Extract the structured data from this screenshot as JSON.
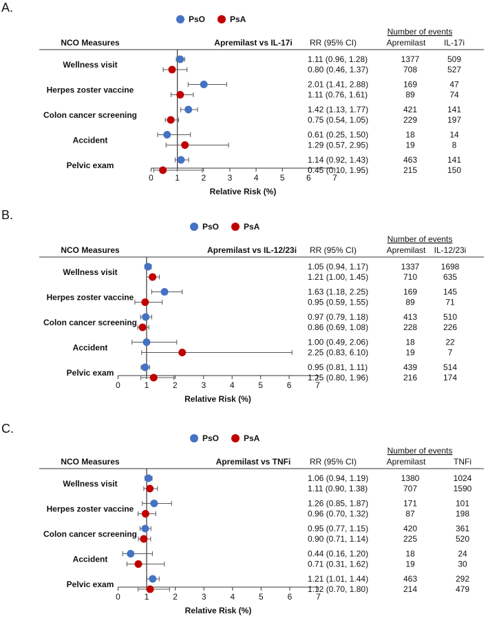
{
  "colors": {
    "pso": "#4472C4",
    "psa": "#C00000",
    "axis": "#333333"
  },
  "chart_data": [
    {
      "panel_label": "A.",
      "type": "forest",
      "title": "Apremilast vs IL-17i",
      "legend": [
        {
          "name": "PsO",
          "color": "#4472C4"
        },
        {
          "name": "PsA",
          "color": "#C00000"
        }
      ],
      "measure_header": "NCO Measures",
      "rr_header": "RR (95% CI)",
      "events_header": "Number of events",
      "col1_header": "Apremilast",
      "col2_header": "IL-17i",
      "xlabel": "Relative Risk (%)",
      "xlim": [
        0,
        7
      ],
      "ticks": [
        "0",
        "1",
        "2",
        "3",
        "4",
        "5",
        "6",
        "7"
      ],
      "reference_line": 1,
      "rows": [
        {
          "measure": "Wellness visit",
          "pso": {
            "rr": 1.11,
            "lo": 0.96,
            "hi": 1.28,
            "text": "1.11 (0.96, 1.28)",
            "n1": "1377",
            "n2": "509"
          },
          "psa": {
            "rr": 0.8,
            "lo": 0.46,
            "hi": 1.37,
            "text": "0.80 (0.46, 1.37)",
            "n1": "708",
            "n2": "527"
          }
        },
        {
          "measure": "Herpes zoster vaccine",
          "pso": {
            "rr": 2.01,
            "lo": 1.41,
            "hi": 2.88,
            "text": "2.01 (1.41, 2.88)",
            "n1": "169",
            "n2": "47"
          },
          "psa": {
            "rr": 1.11,
            "lo": 0.76,
            "hi": 1.61,
            "text": "1.11 (0.76, 1.61)",
            "n1": "89",
            "n2": "74"
          }
        },
        {
          "measure": "Colon cancer screening",
          "pso": {
            "rr": 1.42,
            "lo": 1.13,
            "hi": 1.77,
            "text": "1.42 (1.13, 1.77)",
            "n1": "421",
            "n2": "141"
          },
          "psa": {
            "rr": 0.75,
            "lo": 0.54,
            "hi": 1.05,
            "text": "0.75 (0.54, 1.05)",
            "n1": "229",
            "n2": "197"
          }
        },
        {
          "measure": "Accident",
          "pso": {
            "rr": 0.61,
            "lo": 0.25,
            "hi": 1.5,
            "text": "0.61 (0.25, 1.50)",
            "n1": "18",
            "n2": "14"
          },
          "psa": {
            "rr": 1.29,
            "lo": 0.57,
            "hi": 2.95,
            "text": "1.29 (0.57, 2.95)",
            "n1": "19",
            "n2": "8"
          }
        },
        {
          "measure": "Pelvic exam",
          "pso": {
            "rr": 1.14,
            "lo": 0.92,
            "hi": 1.43,
            "text": "1.14 (0.92, 1.43)",
            "n1": "463",
            "n2": "141"
          },
          "psa": {
            "rr": 0.45,
            "lo": 0.1,
            "hi": 1.95,
            "text": "0.45 (0.10, 1.95)",
            "n1": "215",
            "n2": "150"
          }
        }
      ]
    },
    {
      "panel_label": "B.",
      "type": "forest",
      "title": "Apremilast vs IL-12/23i",
      "legend": [
        {
          "name": "PsO",
          "color": "#4472C4"
        },
        {
          "name": "PsA",
          "color": "#C00000"
        }
      ],
      "measure_header": "NCO Measures",
      "rr_header": "RR (95% CI)",
      "events_header": "Number of events",
      "col1_header": "Apremilast",
      "col2_header": "IL-12/23i",
      "xlabel": "Relative Risk (%)",
      "xlim": [
        0,
        7
      ],
      "ticks": [
        "0",
        "1",
        "2",
        "3",
        "4",
        "5",
        "6",
        "7"
      ],
      "reference_line": 1,
      "rows": [
        {
          "measure": "Wellness visit",
          "pso": {
            "rr": 1.05,
            "lo": 0.94,
            "hi": 1.17,
            "text": "1.05 (0.94, 1.17)",
            "n1": "1337",
            "n2": "1698"
          },
          "psa": {
            "rr": 1.21,
            "lo": 1.0,
            "hi": 1.45,
            "text": "1.21 (1.00, 1.45)",
            "n1": "710",
            "n2": "635"
          }
        },
        {
          "measure": "Herpes zoster vaccine",
          "pso": {
            "rr": 1.63,
            "lo": 1.18,
            "hi": 2.25,
            "text": "1.63 (1.18, 2.25)",
            "n1": "169",
            "n2": "145"
          },
          "psa": {
            "rr": 0.95,
            "lo": 0.59,
            "hi": 1.55,
            "text": "0.95 (0.59, 1.55)",
            "n1": "89",
            "n2": "71"
          }
        },
        {
          "measure": "Colon cancer screening",
          "pso": {
            "rr": 0.97,
            "lo": 0.79,
            "hi": 1.18,
            "text": "0.97 (0.79, 1.18)",
            "n1": "413",
            "n2": "510"
          },
          "psa": {
            "rr": 0.86,
            "lo": 0.69,
            "hi": 1.08,
            "text": "0.86 (0.69, 1.08)",
            "n1": "228",
            "n2": "226"
          }
        },
        {
          "measure": "Accident",
          "pso": {
            "rr": 1.0,
            "lo": 0.49,
            "hi": 2.06,
            "text": "1.00 (0.49, 2.06)",
            "n1": "18",
            "n2": "22"
          },
          "psa": {
            "rr": 2.25,
            "lo": 0.83,
            "hi": 6.1,
            "text": "2.25 (0.83, 6.10)",
            "n1": "19",
            "n2": "7"
          }
        },
        {
          "measure": "Pelvic exam",
          "pso": {
            "rr": 0.95,
            "lo": 0.81,
            "hi": 1.11,
            "text": "0.95 (0.81, 1.11)",
            "n1": "439",
            "n2": "514"
          },
          "psa": {
            "rr": 1.25,
            "lo": 0.8,
            "hi": 1.96,
            "text": "1.25 (0.80, 1.96)",
            "n1": "216",
            "n2": "174"
          }
        }
      ]
    },
    {
      "panel_label": "C.",
      "type": "forest",
      "title": "Apremilast vs TNFi",
      "legend": [
        {
          "name": "PsO",
          "color": "#4472C4"
        },
        {
          "name": "PsA",
          "color": "#C00000"
        }
      ],
      "measure_header": "NCO Measures",
      "rr_header": "RR (95% CI)",
      "events_header": "Number of events",
      "col1_header": "Apremilast",
      "col2_header": "TNFi",
      "xlabel": "Relative Risk (%)",
      "xlim": [
        0,
        7
      ],
      "ticks": [
        "0",
        "1",
        "2",
        "3",
        "4",
        "5",
        "6",
        "7"
      ],
      "reference_line": 1,
      "rows": [
        {
          "measure": "Wellness visit",
          "pso": {
            "rr": 1.06,
            "lo": 0.94,
            "hi": 1.19,
            "text": "1.06 (0.94, 1.19)",
            "n1": "1380",
            "n2": "1024"
          },
          "psa": {
            "rr": 1.11,
            "lo": 0.9,
            "hi": 1.38,
            "text": "1.11 (0.90, 1.38)",
            "n1": "707",
            "n2": "1590"
          }
        },
        {
          "measure": "Herpes zoster vaccine",
          "pso": {
            "rr": 1.26,
            "lo": 0.85,
            "hi": 1.87,
            "text": "1.26 (0.85, 1.87)",
            "n1": "171",
            "n2": "101"
          },
          "psa": {
            "rr": 0.96,
            "lo": 0.7,
            "hi": 1.32,
            "text": "0.96 (0.70, 1.32)",
            "n1": "87",
            "n2": "198"
          }
        },
        {
          "measure": "Colon cancer screening",
          "pso": {
            "rr": 0.95,
            "lo": 0.77,
            "hi": 1.15,
            "text": "0.95 (0.77, 1.15)",
            "n1": "420",
            "n2": "361"
          },
          "psa": {
            "rr": 0.9,
            "lo": 0.71,
            "hi": 1.14,
            "text": "0.90 (0.71, 1.14)",
            "n1": "225",
            "n2": "520"
          }
        },
        {
          "measure": "Accident",
          "pso": {
            "rr": 0.44,
            "lo": 0.16,
            "hi": 1.2,
            "text": "0.44 (0.16, 1.20)",
            "n1": "18",
            "n2": "24"
          },
          "psa": {
            "rr": 0.71,
            "lo": 0.31,
            "hi": 1.62,
            "text": "0.71 (0.31, 1.62)",
            "n1": "19",
            "n2": "30"
          }
        },
        {
          "measure": "Pelvic exam",
          "pso": {
            "rr": 1.21,
            "lo": 1.01,
            "hi": 1.44,
            "text": "1.21 (1.01, 1.44)",
            "n1": "463",
            "n2": "292"
          },
          "psa": {
            "rr": 1.12,
            "lo": 0.7,
            "hi": 1.8,
            "text": "1.12 (0.70, 1.80)",
            "n1": "214",
            "n2": "479"
          }
        }
      ]
    }
  ]
}
